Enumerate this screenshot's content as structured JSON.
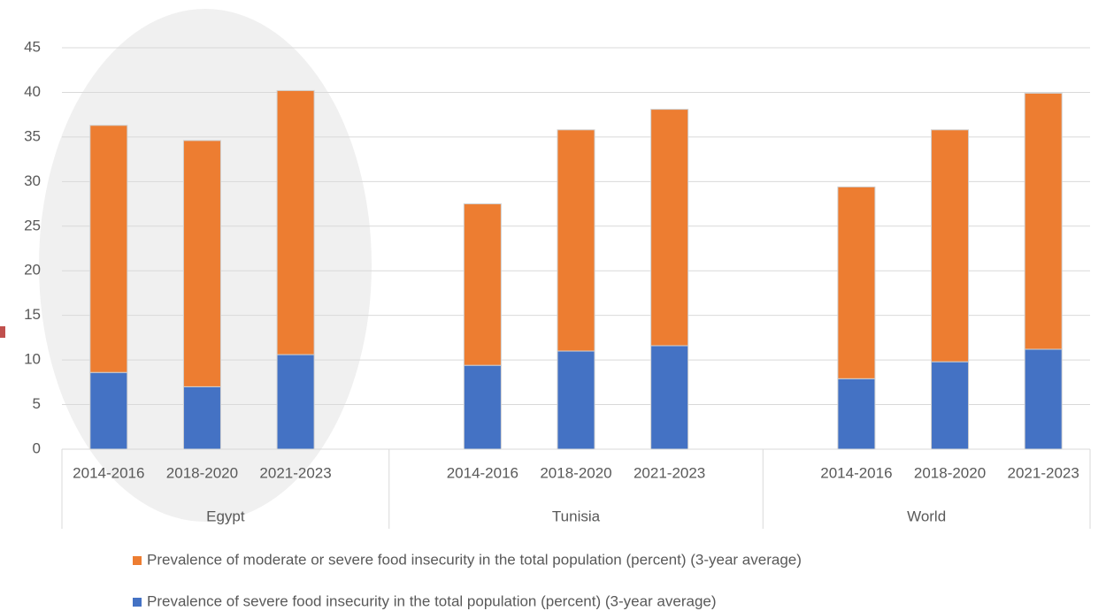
{
  "chart_data": {
    "type": "bar",
    "stacked": true,
    "categories": [
      "2014-2016",
      "2018-2020",
      "2021-2023",
      "2014-2016",
      "2018-2020",
      "2021-2023",
      "2014-2016",
      "2018-2020",
      "2021-2023"
    ],
    "groups": [
      "Egypt",
      "Tunisia",
      "World"
    ],
    "series": [
      {
        "name": "Prevalence of severe food insecurity in the total population (percent) (3-year average)",
        "color": "#4472c4",
        "values": [
          8.6,
          7.0,
          10.6,
          9.4,
          11.0,
          11.6,
          7.9,
          9.8,
          11.2
        ]
      },
      {
        "name": "Prevalence of moderate or severe food insecurity in the total population (percent) (3-year average)",
        "color": "#ed7d31",
        "values": [
          27.7,
          27.6,
          29.6,
          18.1,
          24.8,
          26.5,
          21.5,
          26.0,
          28.7
        ]
      }
    ],
    "ylim": [
      0,
      45
    ],
    "yticks": [
      0,
      5,
      10,
      15,
      20,
      25,
      30,
      35,
      40,
      45
    ],
    "grid": true
  }
}
